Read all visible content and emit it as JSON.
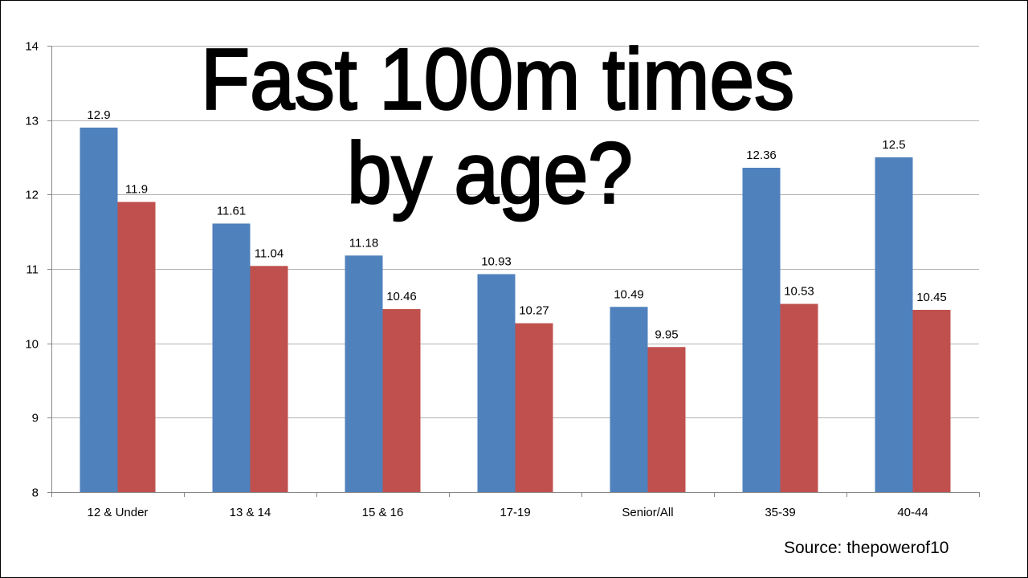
{
  "chart_data": {
    "type": "bar",
    "title_lines": [
      "Fast 100m times",
      "by age?"
    ],
    "categories": [
      "12 & Under",
      "13 & 14",
      "15 & 16",
      "17-19",
      "Senior/All",
      "35-39",
      "40-44"
    ],
    "series": [
      {
        "values": [
          12.9,
          11.61,
          11.18,
          10.93,
          10.49,
          12.36,
          12.5
        ],
        "color": "#4f81bd"
      },
      {
        "values": [
          11.9,
          11.04,
          10.46,
          10.27,
          9.95,
          10.53,
          10.45
        ],
        "color": "#c0504d"
      }
    ],
    "data_labels": [
      [
        "12.9",
        "11.61",
        "11.18",
        "10.93",
        "10.49",
        "12.36",
        "12.5"
      ],
      [
        "11.9",
        "11.04",
        "10.46",
        "10.27",
        "9.95",
        "10.53",
        "10.45"
      ]
    ],
    "ylim": [
      8,
      14
    ],
    "yticks": [
      8,
      9,
      10,
      11,
      12,
      13,
      14
    ],
    "xlabel": "",
    "ylabel": "",
    "grid": true,
    "legend": "none",
    "gridline_color": "#b3b3b3",
    "axis_color": "#888888"
  },
  "source_text": "Source: thepowerof10"
}
